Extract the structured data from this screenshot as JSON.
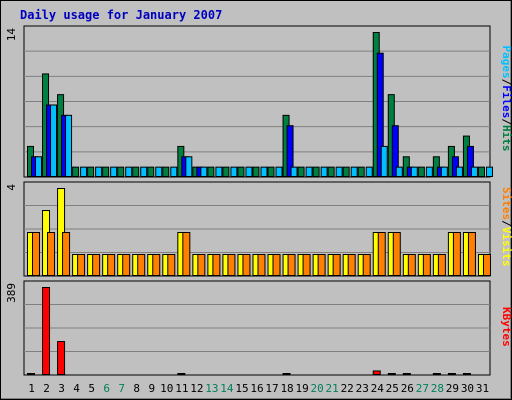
{
  "chart_data": {
    "type": "bar",
    "title": "Daily usage for January 2007",
    "categories": [
      "1",
      "2",
      "3",
      "4",
      "5",
      "6",
      "7",
      "8",
      "9",
      "10",
      "11",
      "12",
      "13",
      "14",
      "15",
      "16",
      "17",
      "18",
      "19",
      "20",
      "21",
      "22",
      "23",
      "24",
      "25",
      "26",
      "27",
      "28",
      "29",
      "30",
      "31"
    ],
    "weekend_days": [
      "6",
      "7",
      "13",
      "14",
      "20",
      "21",
      "27",
      "28"
    ],
    "panels": [
      {
        "name": "hits-files-pages",
        "ytick": "14",
        "ymax": 14,
        "legend": [
          {
            "label": "Pages",
            "color": "#00c0ff"
          },
          {
            "label": "/",
            "color": "#000000"
          },
          {
            "label": "Files",
            "color": "#0000ff"
          },
          {
            "label": "/",
            "color": "#000000"
          },
          {
            "label": "Hits",
            "color": "#008040"
          }
        ],
        "series": [
          {
            "name": "Hits",
            "color": "#008040",
            "values": [
              3,
              10,
              8,
              1,
              1,
              1,
              1,
              1,
              1,
              1,
              3,
              1,
              1,
              1,
              1,
              1,
              1,
              6,
              1,
              1,
              1,
              1,
              1,
              14,
              8,
              2,
              1,
              2,
              3,
              4,
              1
            ]
          },
          {
            "name": "Files",
            "color": "#0000ff",
            "values": [
              2,
              7,
              6,
              0,
              0,
              0,
              0,
              0,
              0,
              0,
              2,
              1,
              0,
              0,
              0,
              0,
              0,
              5,
              0,
              0,
              0,
              0,
              0,
              12,
              5,
              1,
              0,
              1,
              2,
              3,
              0
            ]
          },
          {
            "name": "Pages",
            "color": "#00c0ff",
            "values": [
              2,
              7,
              6,
              1,
              1,
              1,
              1,
              1,
              1,
              1,
              2,
              1,
              1,
              1,
              1,
              1,
              1,
              1,
              1,
              1,
              1,
              1,
              1,
              3,
              1,
              1,
              1,
              1,
              1,
              1,
              1
            ]
          }
        ]
      },
      {
        "name": "visits-sites",
        "ytick": "4",
        "ymax": 4,
        "legend": [
          {
            "label": "Sites",
            "color": "#ff8000"
          },
          {
            "label": "/",
            "color": "#000000"
          },
          {
            "label": "Visits",
            "color": "#ffff00"
          }
        ],
        "series": [
          {
            "name": "Visits",
            "color": "#ffff00",
            "values": [
              2,
              3,
              4,
              1,
              1,
              1,
              1,
              1,
              1,
              1,
              2,
              1,
              1,
              1,
              1,
              1,
              1,
              1,
              1,
              1,
              1,
              1,
              1,
              2,
              2,
              1,
              1,
              1,
              2,
              2,
              1
            ]
          },
          {
            "name": "Sites",
            "color": "#ff8000",
            "values": [
              2,
              2,
              2,
              1,
              1,
              1,
              1,
              1,
              1,
              1,
              2,
              1,
              1,
              1,
              1,
              1,
              1,
              1,
              1,
              1,
              1,
              1,
              1,
              2,
              2,
              1,
              1,
              1,
              2,
              2,
              1
            ]
          }
        ]
      },
      {
        "name": "kbytes",
        "ytick": "389",
        "ymax": 389,
        "legend": [
          {
            "label": "KBytes",
            "color": "#ff0000"
          }
        ],
        "series": [
          {
            "name": "KBytes",
            "color": "#ff0000",
            "values": [
              4,
              389,
              150,
              0,
              0,
              0,
              0,
              0,
              0,
              0,
              4,
              0,
              0,
              0,
              0,
              0,
              0,
              4,
              0,
              0,
              0,
              0,
              0,
              20,
              4,
              4,
              0,
              4,
              4,
              4,
              0
            ]
          }
        ]
      }
    ]
  }
}
